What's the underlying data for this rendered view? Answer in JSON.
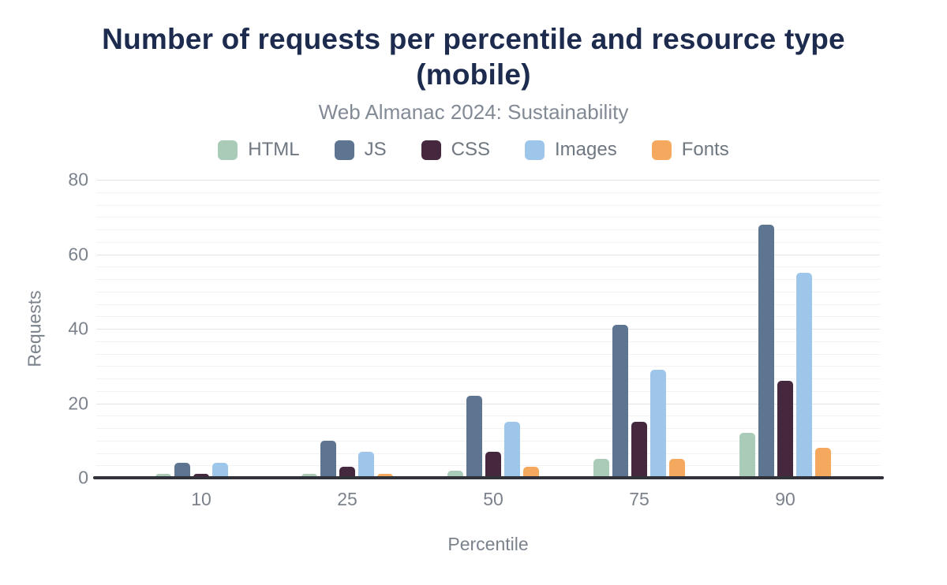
{
  "chart_data": {
    "type": "bar",
    "title": "Number of requests per percentile and resource type (mobile)",
    "subtitle": "Web Almanac 2024: Sustainability",
    "xlabel": "Percentile",
    "ylabel": "Requests",
    "categories": [
      "10",
      "25",
      "50",
      "75",
      "90"
    ],
    "series": [
      {
        "name": "HTML",
        "color": "#a9cbb7",
        "values": [
          1,
          1,
          2,
          5,
          12
        ]
      },
      {
        "name": "JS",
        "color": "#5d7590",
        "values": [
          4,
          10,
          22,
          41,
          68
        ]
      },
      {
        "name": "CSS",
        "color": "#45283e",
        "values": [
          1,
          3,
          7,
          15,
          26
        ]
      },
      {
        "name": "Images",
        "color": "#9ec6eb",
        "values": [
          4,
          7,
          15,
          29,
          55
        ]
      },
      {
        "name": "Fonts",
        "color": "#f5a95e",
        "values": [
          0,
          1,
          3,
          5,
          8
        ]
      }
    ],
    "ylim": [
      0,
      80
    ],
    "yticks": [
      0,
      20,
      40,
      60,
      80
    ],
    "grid": {
      "major_interval": 20,
      "minor_subdivisions": 6,
      "visible": true
    },
    "legend_position": "top",
    "axis_color": "#32323a",
    "title_color": "#1d2c4e",
    "label_color": "#7b828c"
  }
}
